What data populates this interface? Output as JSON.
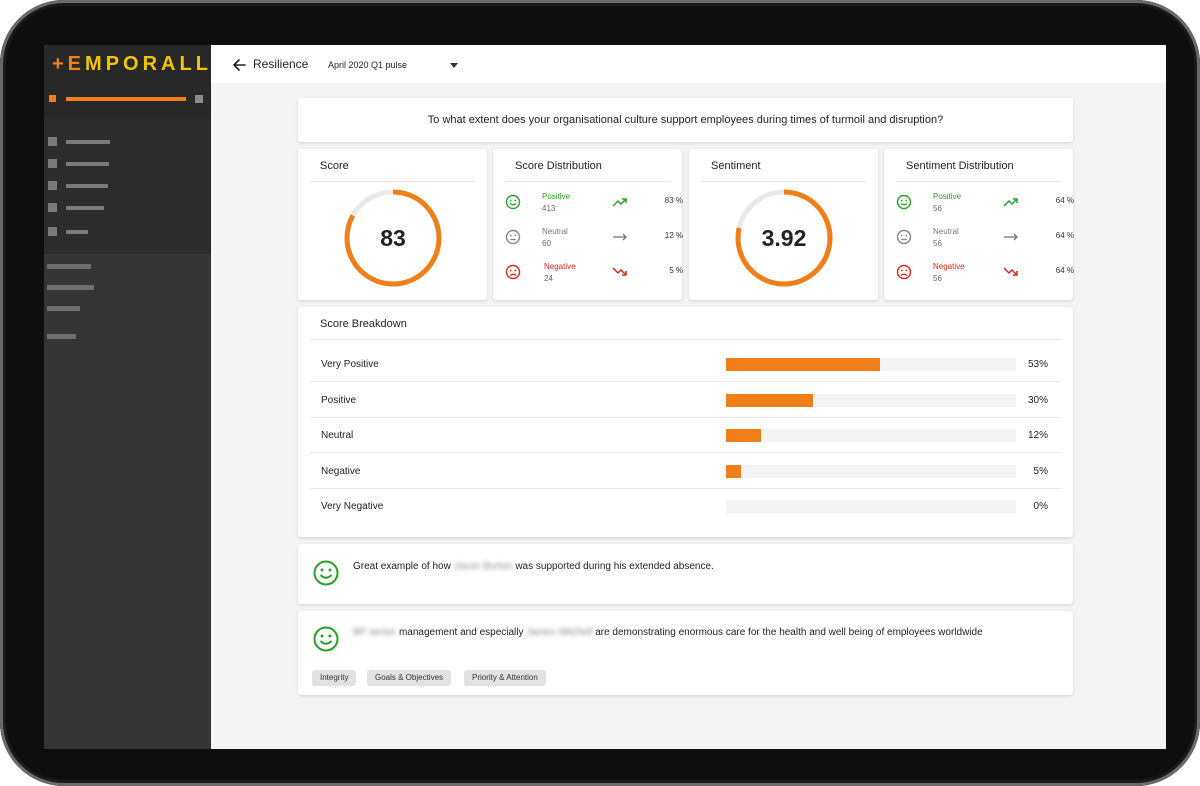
{
  "app": {
    "logo_primary": "+E",
    "logo_rest": "MPORALL"
  },
  "header": {
    "title": "Resilience",
    "survey_selected": "April 2020 Q1 pulse"
  },
  "question": "To what extent does your organisational culture support employees during times of turmoil and disruption?",
  "score": {
    "title": "Score",
    "value": "83",
    "fraction": 0.83
  },
  "score_distribution": {
    "title": "Score Distribution",
    "rows": [
      {
        "label": "Positive",
        "count": "413",
        "pct": "83 %"
      },
      {
        "label": "Neutral",
        "count": "60",
        "pct": "12 %"
      },
      {
        "label": "Negative",
        "count": "24",
        "pct": "5 %"
      }
    ]
  },
  "sentiment": {
    "title": "Sentiment",
    "value": "3.92",
    "fraction": 0.784
  },
  "sentiment_distribution": {
    "title": "Sentiment Distribution",
    "rows": [
      {
        "label": "Positive",
        "count": "56",
        "pct": "64 %"
      },
      {
        "label": "Neutral",
        "count": "56",
        "pct": "64 %"
      },
      {
        "label": "Negative",
        "count": "56",
        "pct": "64 %"
      }
    ]
  },
  "breakdown": {
    "title": "Score Breakdown",
    "rows": [
      {
        "label": "Very Positive",
        "pct": "53%",
        "value": 53
      },
      {
        "label": "Positive",
        "pct": "30%",
        "value": 30
      },
      {
        "label": "Neutral",
        "pct": "12%",
        "value": 12
      },
      {
        "label": "Negative",
        "pct": "5%",
        "value": 5
      },
      {
        "label": "Very Negative",
        "pct": "0%",
        "value": 0
      }
    ]
  },
  "comments": [
    {
      "text_a": "Great example of how",
      "redacted": "Jason Burton",
      "text_b": "was supported during his extended absence."
    },
    {
      "redacted_a": "BP senior",
      "text_a": "management and especially",
      "redacted_b": "James Mitchell",
      "text_b": "are demonstrating enormous care for the health and well being of employees worldwide",
      "tags": [
        "Integrity",
        "Goals & Objectives",
        "Priority & Attention"
      ]
    }
  ],
  "colors": {
    "accent": "#f07f1a",
    "positive": "#2aa02a",
    "neutral": "#888888",
    "negative": "#d9261c"
  }
}
